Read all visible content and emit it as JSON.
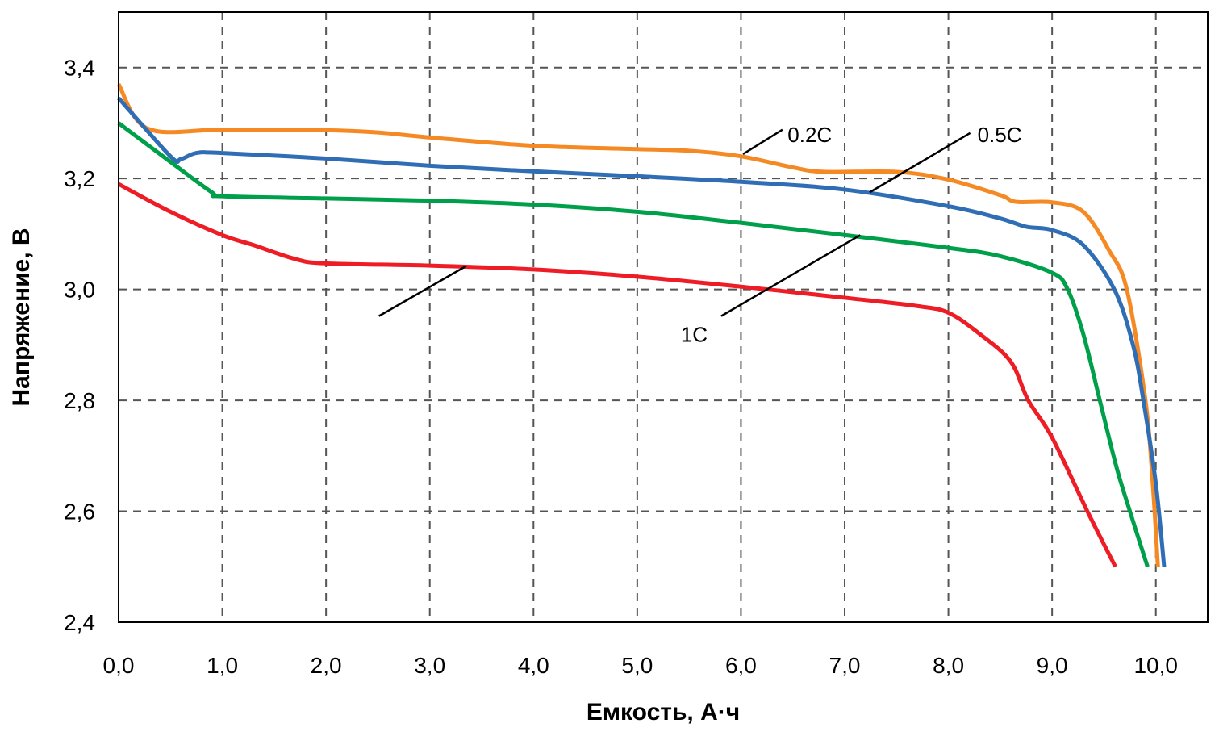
{
  "chart_data": {
    "type": "line",
    "title": "",
    "xlabel": "Емкость, А·ч",
    "ylabel": "Напряжение, В",
    "xlim": [
      0,
      10.5
    ],
    "ylim": [
      2.4,
      3.5
    ],
    "xticks": [
      0,
      1,
      2,
      3,
      4,
      5,
      6,
      7,
      8,
      9,
      10
    ],
    "xtick_labels": [
      "0,0",
      "1,0",
      "2,0",
      "3,0",
      "4,0",
      "5,0",
      "6,0",
      "7,0",
      "8,0",
      "9,0",
      "10,0"
    ],
    "yticks": [
      2.4,
      2.6,
      2.8,
      3.0,
      3.2,
      3.4
    ],
    "ytick_labels": [
      "2,4",
      "2,6",
      "2,8",
      "3,0",
      "3,2",
      "3,4"
    ],
    "grid": true,
    "legend": "none (leader-line labels)",
    "series": [
      {
        "name": "0.2C",
        "color": "#f58a24",
        "x": [
          0,
          0.28,
          1,
          2,
          2.5,
          3,
          4,
          5,
          5.5,
          6,
          6.5,
          6.8,
          7.5,
          8,
          8.5,
          8.65,
          9,
          9.3,
          9.55,
          9.72,
          9.9,
          9.97,
          10.02
        ],
        "y": [
          3.37,
          3.29,
          3.288,
          3.287,
          3.283,
          3.274,
          3.259,
          3.253,
          3.25,
          3.24,
          3.22,
          3.212,
          3.212,
          3.198,
          3.17,
          3.158,
          3.157,
          3.14,
          3.07,
          3.0,
          2.8,
          2.65,
          2.5
        ]
      },
      {
        "name": "0.5C",
        "color": "#2f6db5",
        "x": [
          0,
          0.5,
          0.6,
          0.75,
          1,
          2,
          3,
          4,
          5,
          6,
          7,
          8,
          8.5,
          8.75,
          9,
          9.3,
          9.6,
          9.78,
          9.88,
          10.0,
          10.08
        ],
        "y": [
          3.345,
          3.24,
          3.235,
          3.246,
          3.246,
          3.236,
          3.223,
          3.213,
          3.204,
          3.194,
          3.18,
          3.15,
          3.128,
          3.113,
          3.107,
          3.08,
          3.0,
          2.9,
          2.8,
          2.65,
          2.5
        ]
      },
      {
        "name": "1C",
        "color": "#00a04b",
        "x": [
          0,
          0.5,
          0.9,
          1,
          2,
          3,
          4,
          5,
          6,
          7,
          8,
          8.5,
          9,
          9.15,
          9.3,
          9.46,
          9.62,
          9.75,
          9.92
        ],
        "y": [
          3.3,
          3.23,
          3.175,
          3.168,
          3.164,
          3.16,
          3.153,
          3.14,
          3.12,
          3.098,
          3.075,
          3.06,
          3.03,
          3.0,
          2.92,
          2.8,
          2.68,
          2.6,
          2.5
        ]
      },
      {
        "color": "#ee1c25",
        "x": [
          0,
          0.5,
          1,
          1.3,
          1.7,
          2,
          3,
          4,
          5,
          6,
          7,
          7.7,
          8,
          8.3,
          8.6,
          8.77,
          9,
          9.34,
          9.61
        ],
        "y": [
          3.19,
          3.14,
          3.098,
          3.08,
          3.055,
          3.047,
          3.043,
          3.036,
          3.023,
          3.005,
          2.985,
          2.97,
          2.958,
          2.92,
          2.87,
          2.8,
          2.733,
          2.6,
          2.5
        ]
      }
    ],
    "annotations": [
      {
        "text": "0.2C",
        "at": [
          6.45,
          3.28
        ],
        "leader": [
          [
            6.02,
            3.244
          ],
          [
            6.4,
            3.288
          ]
        ]
      },
      {
        "text": "0.5C",
        "at": [
          8.28,
          3.28
        ],
        "leader": [
          [
            7.24,
            3.175
          ],
          [
            8.21,
            3.282
          ]
        ]
      },
      {
        "text": "1C",
        "at": [
          5.42,
          2.92
        ],
        "leader": [
          [
            5.81,
            2.952
          ],
          [
            7.15,
            3.098
          ]
        ]
      },
      {
        "text": "",
        "at": null,
        "leader": [
          [
            2.51,
            2.952
          ],
          [
            3.35,
            3.042
          ]
        ]
      }
    ]
  }
}
